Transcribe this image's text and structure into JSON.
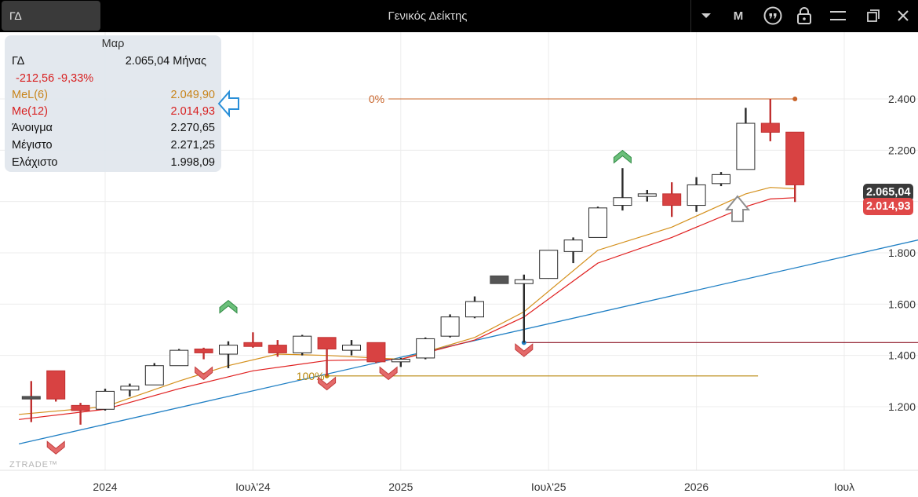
{
  "toolbar": {
    "symbol": "ΓΔ",
    "title": "Γενικός Δείκτης",
    "period_button": "M",
    "icons": [
      "dropdown-icon",
      "quote-icon",
      "lock-icon",
      "menu-icon",
      "restore-window-icon",
      "close-icon"
    ]
  },
  "info_panel": {
    "header": "Μαρ",
    "symbol": "ΓΔ",
    "close": "2.065,04",
    "period": "Μήνας",
    "change": "-212,56",
    "change_pct": "-9,33%",
    "ma1_label": "MeL(6)",
    "ma1_value": "2.049,90",
    "ma2_label": "Me(12)",
    "ma2_value": "2.014,93",
    "open_label": "Άνοιγμα",
    "open_value": "2.270,65",
    "high_label": "Μέγιστο",
    "high_value": "2.271,25",
    "low_label": "Ελάχιστο",
    "low_value": "1.998,09"
  },
  "price_tags": {
    "close": "2.065,04",
    "ma": "2.014,93"
  },
  "fib_labels": {
    "top": "0%",
    "bottom": "100%"
  },
  "watermark": "ZTRADE™",
  "colors": {
    "up": "#ffffff",
    "down": "#d84242",
    "ma1": "#d4901c",
    "ma2": "#e02020",
    "trendline": "#1f7fc4",
    "support": "#8a1020",
    "fib_top": "#c8642a",
    "fib_bottom": "#b8860b"
  },
  "chart_data": {
    "type": "candlestick",
    "title": "Γενικός Δείκτης",
    "period": "monthly",
    "ylim": [
      1040,
      2530
    ],
    "y_ticks": [
      1200,
      1400,
      1600,
      1800,
      2000,
      2200,
      2400
    ],
    "y_tick_labels": [
      "1.200",
      "1.400",
      "1.600",
      "1.800",
      "",
      "2.200",
      "2.400"
    ],
    "x_tick_labels": [
      "2024",
      "Ιουλ'24",
      "2025",
      "Ιουλ'25",
      "2026",
      "Ιουλ"
    ],
    "x_tick_months": [
      0,
      6,
      12,
      18,
      24,
      30
    ],
    "x_range_months": [
      -3.5,
      33
    ],
    "grid": true,
    "candles": [
      {
        "m": -3,
        "o": 1240,
        "h": 1300,
        "l": 1140,
        "c": 1230
      },
      {
        "m": -2,
        "o": 1340,
        "h": 1340,
        "l": 1220,
        "c": 1230
      },
      {
        "m": -1,
        "o": 1205,
        "h": 1215,
        "l": 1130,
        "c": 1185
      },
      {
        "m": 0,
        "o": 1190,
        "h": 1270,
        "l": 1185,
        "c": 1260
      },
      {
        "m": 1,
        "o": 1265,
        "h": 1290,
        "l": 1240,
        "c": 1280
      },
      {
        "m": 2,
        "o": 1285,
        "h": 1370,
        "l": 1285,
        "c": 1360
      },
      {
        "m": 3,
        "o": 1360,
        "h": 1425,
        "l": 1360,
        "c": 1420
      },
      {
        "m": 4,
        "o": 1425,
        "h": 1430,
        "l": 1385,
        "c": 1410
      },
      {
        "m": 5,
        "o": 1405,
        "h": 1455,
        "l": 1350,
        "c": 1440
      },
      {
        "m": 6,
        "o": 1450,
        "h": 1490,
        "l": 1430,
        "c": 1435
      },
      {
        "m": 7,
        "o": 1440,
        "h": 1460,
        "l": 1395,
        "c": 1410
      },
      {
        "m": 8,
        "o": 1410,
        "h": 1480,
        "l": 1400,
        "c": 1475
      },
      {
        "m": 9,
        "o": 1470,
        "h": 1470,
        "l": 1320,
        "c": 1425
      },
      {
        "m": 10,
        "o": 1420,
        "h": 1460,
        "l": 1400,
        "c": 1440
      },
      {
        "m": 11,
        "o": 1450,
        "h": 1450,
        "l": 1370,
        "c": 1375
      },
      {
        "m": 12,
        "o": 1375,
        "h": 1390,
        "l": 1355,
        "c": 1385
      },
      {
        "m": 13,
        "o": 1390,
        "h": 1470,
        "l": 1385,
        "c": 1465
      },
      {
        "m": 14,
        "o": 1475,
        "h": 1560,
        "l": 1470,
        "c": 1550
      },
      {
        "m": 15,
        "o": 1550,
        "h": 1630,
        "l": 1545,
        "c": 1610
      },
      {
        "m": 16,
        "o": 1710,
        "h": 1710,
        "l": 1680,
        "c": 1680
      },
      {
        "m": 17,
        "o": 1680,
        "h": 1715,
        "l": 1450,
        "c": 1695
      },
      {
        "m": 18,
        "o": 1700,
        "h": 1810,
        "l": 1700,
        "c": 1810
      },
      {
        "m": 19,
        "o": 1805,
        "h": 1860,
        "l": 1760,
        "c": 1850
      },
      {
        "m": 20,
        "o": 1860,
        "h": 1980,
        "l": 1860,
        "c": 1975
      },
      {
        "m": 21,
        "o": 1985,
        "h": 2130,
        "l": 1965,
        "c": 2015
      },
      {
        "m": 22,
        "o": 2020,
        "h": 2045,
        "l": 2000,
        "c": 2030
      },
      {
        "m": 23,
        "o": 2030,
        "h": 2075,
        "l": 1940,
        "c": 1985
      },
      {
        "m": 24,
        "o": 1985,
        "h": 2095,
        "l": 1960,
        "c": 2065
      },
      {
        "m": 25,
        "o": 2070,
        "h": 2115,
        "l": 2060,
        "c": 2105
      },
      {
        "m": 26,
        "o": 2125,
        "h": 2365,
        "l": 2125,
        "c": 2305
      },
      {
        "m": 27,
        "o": 2305,
        "h": 2400,
        "l": 2235,
        "c": 2270
      },
      {
        "m": 28,
        "o": 2270.65,
        "h": 2271.25,
        "l": 1998.09,
        "c": 2065.04
      }
    ],
    "ma_series": [
      {
        "name": "MeL(6)",
        "m": [
          -3.5,
          0,
          3,
          5,
          7,
          9,
          12,
          15,
          17,
          20,
          23,
          26,
          27,
          28
        ],
        "values": [
          1170,
          1200,
          1300,
          1360,
          1405,
          1400,
          1385,
          1470,
          1570,
          1810,
          1900,
          2030,
          2055,
          2049.9
        ]
      },
      {
        "name": "Me(12)",
        "m": [
          -3.5,
          0,
          3,
          6,
          9,
          12,
          15,
          17,
          20,
          23,
          26,
          27,
          28
        ],
        "values": [
          1150,
          1190,
          1270,
          1340,
          1380,
          1385,
          1460,
          1550,
          1760,
          1860,
          1980,
          2010,
          2014.93
        ]
      }
    ],
    "trendline": {
      "m": [
        -3.5,
        33
      ],
      "values": [
        1055,
        1850
      ]
    },
    "support_line": {
      "m_start": 17,
      "m_end": 33,
      "value": 1450
    },
    "fib_levels": [
      {
        "label": "0%",
        "m_start": 11.5,
        "m_end": 28,
        "value": 2400
      },
      {
        "label": "100%",
        "m_start": 9,
        "m_end": 26.5,
        "value": 1320
      }
    ],
    "signals": [
      {
        "m": -2,
        "type": "sell",
        "value": 1040
      },
      {
        "m": 4,
        "type": "sell",
        "value": 1330
      },
      {
        "m": 5,
        "type": "buy",
        "value": 1590
      },
      {
        "m": 9,
        "type": "sell",
        "value": 1290
      },
      {
        "m": 11.5,
        "type": "sell",
        "value": 1330
      },
      {
        "m": 17,
        "type": "sell",
        "value": 1420
      },
      {
        "m": 21,
        "type": "buy",
        "value": 2175
      }
    ]
  }
}
